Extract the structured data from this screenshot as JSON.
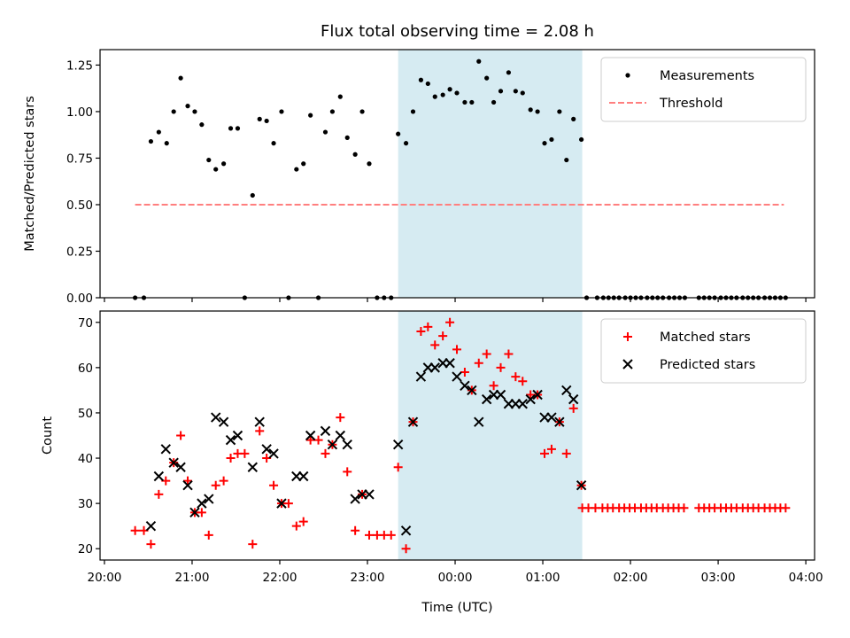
{
  "chart_data": [
    {
      "type": "scatter",
      "title": "Flux total observing time = 2.08 h",
      "ylabel": "Matched/Predicted stars",
      "xlabel": "",
      "xlim": [
        -0.05,
        8.1
      ],
      "ylim": [
        0.0,
        1.333
      ],
      "x_unit": "hours after 20:00 UTC",
      "yticks": [
        0.0,
        0.25,
        0.5,
        0.75,
        1.0,
        1.25
      ],
      "ytick_labels": [
        "0.00",
        "0.25",
        "0.50",
        "0.75",
        "1.00",
        "1.25"
      ],
      "grid": false,
      "legend_position": "top-right",
      "shaded_region": {
        "x0": 3.35,
        "x1": 5.45,
        "color": "#add8e6"
      },
      "threshold": {
        "name": "Threshold",
        "y": 0.5,
        "x0": 0.35,
        "x1": 7.75,
        "color": "#ff7f7f"
      },
      "series": [
        {
          "name": "Measurements",
          "color": "#000000",
          "points": [
            [
              0.35,
              0.0
            ],
            [
              0.45,
              0.0
            ],
            [
              0.53,
              0.84
            ],
            [
              0.62,
              0.89
            ],
            [
              0.71,
              0.83
            ],
            [
              0.79,
              1.0
            ],
            [
              0.87,
              1.18
            ],
            [
              0.95,
              1.03
            ],
            [
              1.03,
              1.0
            ],
            [
              1.11,
              0.93
            ],
            [
              1.19,
              0.74
            ],
            [
              1.27,
              0.69
            ],
            [
              1.36,
              0.72
            ],
            [
              1.44,
              0.91
            ],
            [
              1.52,
              0.91
            ],
            [
              1.6,
              0.0
            ],
            [
              1.69,
              0.55
            ],
            [
              1.77,
              0.96
            ],
            [
              1.85,
              0.95
            ],
            [
              1.93,
              0.83
            ],
            [
              2.02,
              1.0
            ],
            [
              2.1,
              0.0
            ],
            [
              2.19,
              0.69
            ],
            [
              2.27,
              0.72
            ],
            [
              2.35,
              0.98
            ],
            [
              2.44,
              0.0
            ],
            [
              2.52,
              0.89
            ],
            [
              2.6,
              1.0
            ],
            [
              2.69,
              1.08
            ],
            [
              2.77,
              0.86
            ],
            [
              2.86,
              0.77
            ],
            [
              2.94,
              1.0
            ],
            [
              3.02,
              0.72
            ],
            [
              3.11,
              0.0
            ],
            [
              3.19,
              0.0
            ],
            [
              3.27,
              0.0
            ],
            [
              3.35,
              0.88
            ],
            [
              3.44,
              0.83
            ],
            [
              3.52,
              1.0
            ],
            [
              3.61,
              1.17
            ],
            [
              3.69,
              1.15
            ],
            [
              3.77,
              1.08
            ],
            [
              3.86,
              1.09
            ],
            [
              3.94,
              1.12
            ],
            [
              4.02,
              1.1
            ],
            [
              4.11,
              1.05
            ],
            [
              4.19,
              1.05
            ],
            [
              4.27,
              1.27
            ],
            [
              4.36,
              1.18
            ],
            [
              4.44,
              1.05
            ],
            [
              4.52,
              1.11
            ],
            [
              4.61,
              1.21
            ],
            [
              4.69,
              1.11
            ],
            [
              4.77,
              1.1
            ],
            [
              4.86,
              1.01
            ],
            [
              4.94,
              1.0
            ],
            [
              5.02,
              0.83
            ],
            [
              5.1,
              0.85
            ],
            [
              5.19,
              1.0
            ],
            [
              5.27,
              0.74
            ],
            [
              5.35,
              0.96
            ],
            [
              5.44,
              0.85
            ],
            [
              5.5,
              0.0
            ],
            [
              5.62,
              0.0
            ],
            [
              5.69,
              0.0
            ],
            [
              5.75,
              0.0
            ],
            [
              5.81,
              0.0
            ],
            [
              5.87,
              0.0
            ],
            [
              5.94,
              0.0
            ],
            [
              6.0,
              0.0
            ],
            [
              6.06,
              0.0
            ],
            [
              6.12,
              0.0
            ],
            [
              6.19,
              0.0
            ],
            [
              6.25,
              0.0
            ],
            [
              6.31,
              0.0
            ],
            [
              6.37,
              0.0
            ],
            [
              6.44,
              0.0
            ],
            [
              6.5,
              0.0
            ],
            [
              6.56,
              0.0
            ],
            [
              6.62,
              0.0
            ],
            [
              6.78,
              0.0
            ],
            [
              6.84,
              0.0
            ],
            [
              6.9,
              0.0
            ],
            [
              6.96,
              0.0
            ],
            [
              7.03,
              0.0
            ],
            [
              7.09,
              0.0
            ],
            [
              7.15,
              0.0
            ],
            [
              7.21,
              0.0
            ],
            [
              7.28,
              0.0
            ],
            [
              7.34,
              0.0
            ],
            [
              7.4,
              0.0
            ],
            [
              7.46,
              0.0
            ],
            [
              7.53,
              0.0
            ],
            [
              7.59,
              0.0
            ],
            [
              7.65,
              0.0
            ],
            [
              7.71,
              0.0
            ],
            [
              7.77,
              0.0
            ]
          ]
        }
      ]
    },
    {
      "type": "scatter",
      "title": "",
      "ylabel": "Count",
      "xlabel": "Time (UTC)",
      "xlim": [
        -0.05,
        8.1
      ],
      "ylim": [
        17.5,
        72.5
      ],
      "x_unit": "hours after 20:00 UTC",
      "xticks": [
        0,
        1,
        2,
        3,
        4,
        5,
        6,
        7,
        8
      ],
      "xtick_labels": [
        "20:00",
        "21:00",
        "22:00",
        "23:00",
        "00:00",
        "01:00",
        "02:00",
        "03:00",
        "04:00"
      ],
      "yticks": [
        20,
        30,
        40,
        50,
        60,
        70
      ],
      "ytick_labels": [
        "20",
        "30",
        "40",
        "50",
        "60",
        "70"
      ],
      "grid": false,
      "legend_position": "top-right",
      "shaded_region": {
        "x0": 3.35,
        "x1": 5.45,
        "color": "#add8e6"
      },
      "series": [
        {
          "name": "Matched stars",
          "color": "#ff0000",
          "marker": "plus",
          "points": [
            [
              0.35,
              24
            ],
            [
              0.45,
              24
            ],
            [
              0.53,
              21
            ],
            [
              0.62,
              32
            ],
            [
              0.7,
              35
            ],
            [
              0.79,
              39
            ],
            [
              0.87,
              45
            ],
            [
              0.95,
              35
            ],
            [
              1.03,
              28
            ],
            [
              1.11,
              28
            ],
            [
              1.19,
              23
            ],
            [
              1.27,
              34
            ],
            [
              1.36,
              35
            ],
            [
              1.44,
              40
            ],
            [
              1.52,
              41
            ],
            [
              1.6,
              41
            ],
            [
              1.69,
              21
            ],
            [
              1.77,
              46
            ],
            [
              1.85,
              40
            ],
            [
              1.93,
              34
            ],
            [
              2.02,
              30
            ],
            [
              2.1,
              30
            ],
            [
              2.19,
              25
            ],
            [
              2.27,
              26
            ],
            [
              2.35,
              44
            ],
            [
              2.44,
              44
            ],
            [
              2.52,
              41
            ],
            [
              2.6,
              43
            ],
            [
              2.69,
              49
            ],
            [
              2.77,
              37
            ],
            [
              2.86,
              24
            ],
            [
              2.94,
              32
            ],
            [
              3.02,
              23
            ],
            [
              3.11,
              23
            ],
            [
              3.19,
              23
            ],
            [
              3.27,
              23
            ],
            [
              3.35,
              38
            ],
            [
              3.44,
              20
            ],
            [
              3.52,
              48
            ],
            [
              3.61,
              68
            ],
            [
              3.69,
              69
            ],
            [
              3.77,
              65
            ],
            [
              3.86,
              67
            ],
            [
              3.94,
              70
            ],
            [
              4.02,
              64
            ],
            [
              4.11,
              59
            ],
            [
              4.19,
              55
            ],
            [
              4.27,
              61
            ],
            [
              4.36,
              63
            ],
            [
              4.44,
              56
            ],
            [
              4.52,
              60
            ],
            [
              4.61,
              63
            ],
            [
              4.69,
              58
            ],
            [
              4.77,
              57
            ],
            [
              4.86,
              54
            ],
            [
              4.94,
              54
            ],
            [
              5.02,
              41
            ],
            [
              5.1,
              42
            ],
            [
              5.19,
              48
            ],
            [
              5.27,
              41
            ],
            [
              5.35,
              51
            ],
            [
              5.44,
              34
            ],
            [
              5.45,
              29
            ],
            [
              5.52,
              29
            ],
            [
              5.6,
              29
            ],
            [
              5.68,
              29
            ],
            [
              5.74,
              29
            ],
            [
              5.8,
              29
            ],
            [
              5.87,
              29
            ],
            [
              5.93,
              29
            ],
            [
              5.99,
              29
            ],
            [
              6.05,
              29
            ],
            [
              6.12,
              29
            ],
            [
              6.18,
              29
            ],
            [
              6.24,
              29
            ],
            [
              6.3,
              29
            ],
            [
              6.37,
              29
            ],
            [
              6.43,
              29
            ],
            [
              6.49,
              29
            ],
            [
              6.55,
              29
            ],
            [
              6.61,
              29
            ],
            [
              6.78,
              29
            ],
            [
              6.84,
              29
            ],
            [
              6.9,
              29
            ],
            [
              6.96,
              29
            ],
            [
              7.03,
              29
            ],
            [
              7.09,
              29
            ],
            [
              7.15,
              29
            ],
            [
              7.21,
              29
            ],
            [
              7.28,
              29
            ],
            [
              7.34,
              29
            ],
            [
              7.4,
              29
            ],
            [
              7.46,
              29
            ],
            [
              7.53,
              29
            ],
            [
              7.59,
              29
            ],
            [
              7.65,
              29
            ],
            [
              7.71,
              29
            ],
            [
              7.77,
              29
            ]
          ]
        },
        {
          "name": "Predicted stars",
          "color": "#000000",
          "marker": "x",
          "points": [
            [
              0.53,
              25
            ],
            [
              0.62,
              36
            ],
            [
              0.7,
              42
            ],
            [
              0.79,
              39
            ],
            [
              0.87,
              38
            ],
            [
              0.95,
              34
            ],
            [
              1.03,
              28
            ],
            [
              1.11,
              30
            ],
            [
              1.19,
              31
            ],
            [
              1.27,
              49
            ],
            [
              1.36,
              48
            ],
            [
              1.44,
              44
            ],
            [
              1.52,
              45
            ],
            [
              1.69,
              38
            ],
            [
              1.77,
              48
            ],
            [
              1.85,
              42
            ],
            [
              1.93,
              41
            ],
            [
              2.02,
              30
            ],
            [
              2.19,
              36
            ],
            [
              2.27,
              36
            ],
            [
              2.35,
              45
            ],
            [
              2.52,
              46
            ],
            [
              2.6,
              43
            ],
            [
              2.69,
              45
            ],
            [
              2.77,
              43
            ],
            [
              2.86,
              31
            ],
            [
              2.94,
              32
            ],
            [
              3.02,
              32
            ],
            [
              3.35,
              43
            ],
            [
              3.44,
              24
            ],
            [
              3.52,
              48
            ],
            [
              3.61,
              58
            ],
            [
              3.69,
              60
            ],
            [
              3.77,
              60
            ],
            [
              3.86,
              61
            ],
            [
              3.94,
              61
            ],
            [
              4.02,
              58
            ],
            [
              4.11,
              56
            ],
            [
              4.19,
              55
            ],
            [
              4.27,
              48
            ],
            [
              4.36,
              53
            ],
            [
              4.44,
              54
            ],
            [
              4.52,
              54
            ],
            [
              4.61,
              52
            ],
            [
              4.69,
              52
            ],
            [
              4.77,
              52
            ],
            [
              4.86,
              53
            ],
            [
              4.94,
              54
            ],
            [
              5.02,
              49
            ],
            [
              5.1,
              49
            ],
            [
              5.19,
              48
            ],
            [
              5.27,
              55
            ],
            [
              5.35,
              53
            ],
            [
              5.44,
              34
            ]
          ]
        }
      ]
    }
  ]
}
